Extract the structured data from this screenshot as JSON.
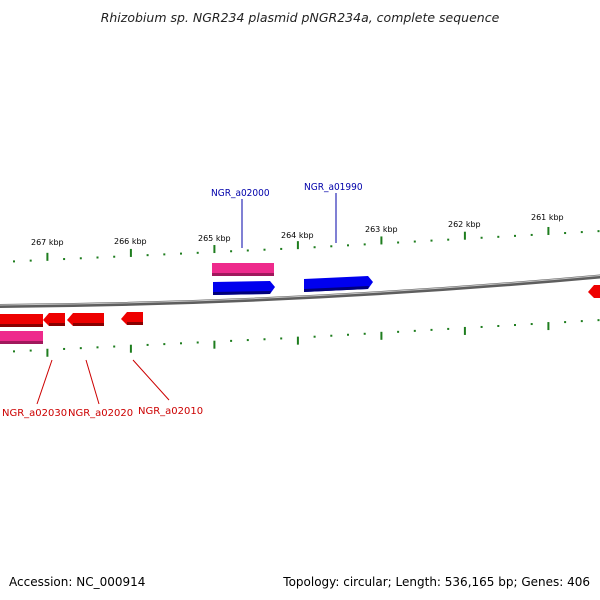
{
  "title": "Rhizobium sp. NGR234 plasmid pNGR234a, complete sequence",
  "footer": {
    "accession": "Accession: NC_000914",
    "summary": "Topology: circular; Length: 536,165 bp; Genes: 406"
  },
  "colors": {
    "backbone": "#8c8c8c",
    "forward_cds": "#0000ee",
    "forward_gene": "#ee2a8c",
    "reverse_cds": "#ee0000",
    "reverse_gene": "#ee2a8c",
    "tick": "#1e7d1e",
    "forward_label": "#0000aa",
    "reverse_label": "#cc0000"
  },
  "kbp_ticks": [
    "267 kbp",
    "266 kbp",
    "265 kbp",
    "264 kbp",
    "263 kbp",
    "262 kbp",
    "261 kbp"
  ],
  "gene_labels": {
    "forward": [
      "NGR_a02000",
      "NGR_a01990"
    ],
    "reverse": [
      "NGR_a02030",
      "NGR_a02020",
      "NGR_a02010"
    ]
  }
}
